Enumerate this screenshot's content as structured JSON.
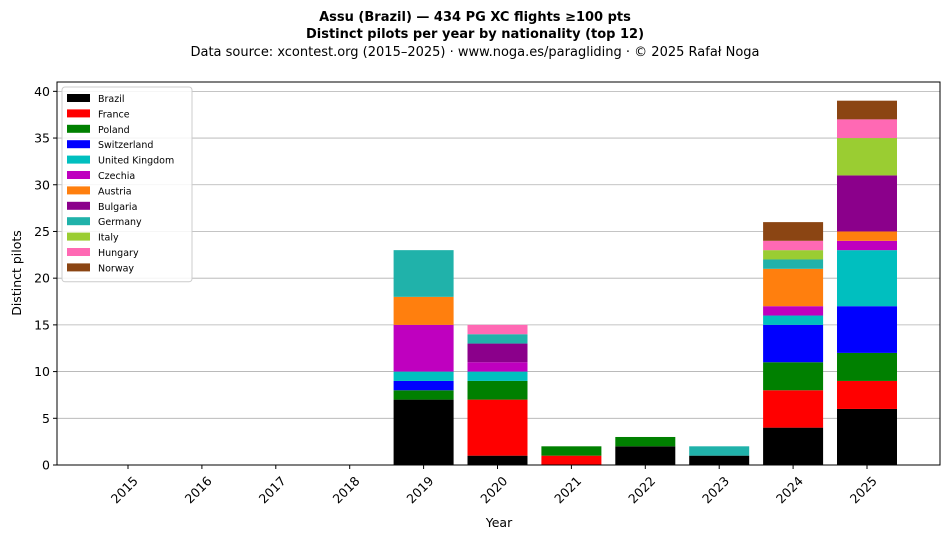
{
  "chart_data": {
    "type": "bar",
    "stacked": true,
    "title": "Assu (Brazil)  —  434 PG XC flights ≥100 pts",
    "subtitle": "Distinct pilots per year by nationality (top 12)",
    "source_line": "Data source: xcontest.org (2015–2025)  ·  www.noga.es/paragliding  ·  © 2025 Rafał Noga",
    "xlabel": "Year",
    "ylabel": "Distinct pilots",
    "ylim": [
      0,
      41
    ],
    "yticks": [
      0,
      5,
      10,
      15,
      20,
      25,
      30,
      35,
      40
    ],
    "grid": "y",
    "legend_position": "top-left",
    "categories": [
      "2015",
      "2016",
      "2017",
      "2018",
      "2019",
      "2020",
      "2021",
      "2022",
      "2023",
      "2024",
      "2025"
    ],
    "series": [
      {
        "name": "Brazil",
        "color": "#000000",
        "values": [
          0,
          0,
          0,
          0,
          7,
          1,
          0,
          2,
          1,
          4,
          6
        ]
      },
      {
        "name": "France",
        "color": "#ff0000",
        "values": [
          0,
          0,
          0,
          0,
          0,
          6,
          1,
          0,
          0,
          4,
          3
        ]
      },
      {
        "name": "Poland",
        "color": "#008000",
        "values": [
          0,
          0,
          0,
          0,
          1,
          2,
          1,
          1,
          0,
          3,
          3
        ]
      },
      {
        "name": "Switzerland",
        "color": "#0000ff",
        "values": [
          0,
          0,
          0,
          0,
          1,
          0,
          0,
          0,
          0,
          4,
          5
        ]
      },
      {
        "name": "United Kingdom",
        "color": "#00bfbf",
        "values": [
          0,
          0,
          0,
          0,
          1,
          1,
          0,
          0,
          0,
          1,
          6
        ]
      },
      {
        "name": "Czechia",
        "color": "#bf00bf",
        "values": [
          0,
          0,
          0,
          0,
          5,
          1,
          0,
          0,
          0,
          1,
          1
        ]
      },
      {
        "name": "Austria",
        "color": "#ff7f0e",
        "values": [
          0,
          0,
          0,
          0,
          3,
          0,
          0,
          0,
          0,
          4,
          1
        ]
      },
      {
        "name": "Bulgaria",
        "color": "#8b008b",
        "values": [
          0,
          0,
          0,
          0,
          0,
          2,
          0,
          0,
          0,
          0,
          6
        ]
      },
      {
        "name": "Germany",
        "color": "#20b2aa",
        "values": [
          0,
          0,
          0,
          0,
          5,
          1,
          0,
          0,
          1,
          1,
          0
        ]
      },
      {
        "name": "Italy",
        "color": "#9acd32",
        "values": [
          0,
          0,
          0,
          0,
          0,
          0,
          0,
          0,
          0,
          1,
          4
        ]
      },
      {
        "name": "Hungary",
        "color": "#ff69b4",
        "values": [
          0,
          0,
          0,
          0,
          0,
          1,
          0,
          0,
          0,
          1,
          2
        ]
      },
      {
        "name": "Norway",
        "color": "#8b4513",
        "values": [
          0,
          0,
          0,
          0,
          0,
          0,
          0,
          0,
          0,
          2,
          2
        ]
      }
    ]
  }
}
